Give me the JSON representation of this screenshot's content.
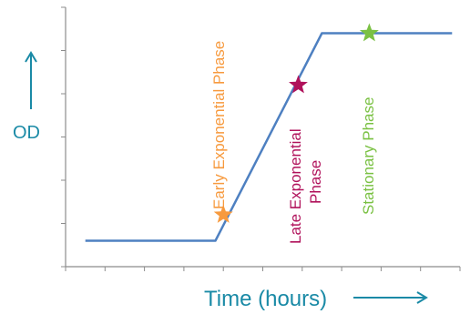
{
  "chart_data": {
    "type": "line",
    "title": "",
    "xlabel": "Time (hours)",
    "ylabel": "OD",
    "grid": false,
    "xlim": [
      0,
      10
    ],
    "ylim": [
      0,
      6
    ],
    "series": [
      {
        "x": [
          0.5,
          3.8,
          6.5,
          9.8
        ],
        "y": [
          0.6,
          0.6,
          5.4,
          5.4
        ]
      }
    ],
    "markers": [
      {
        "label": "Early Exponential Phase",
        "x": 4.0,
        "y": 1.2,
        "color": "#f79a3e"
      },
      {
        "label": "Late Exponential Phase",
        "x": 5.9,
        "y": 4.2,
        "color": "#b0125b"
      },
      {
        "label": "Stationary Phase",
        "x": 7.7,
        "y": 5.4,
        "color": "#7ac143"
      }
    ],
    "colors": {
      "line": "#4e80c1",
      "axis": "#8c8c8c",
      "axis_label": "#1a8aa6"
    }
  }
}
